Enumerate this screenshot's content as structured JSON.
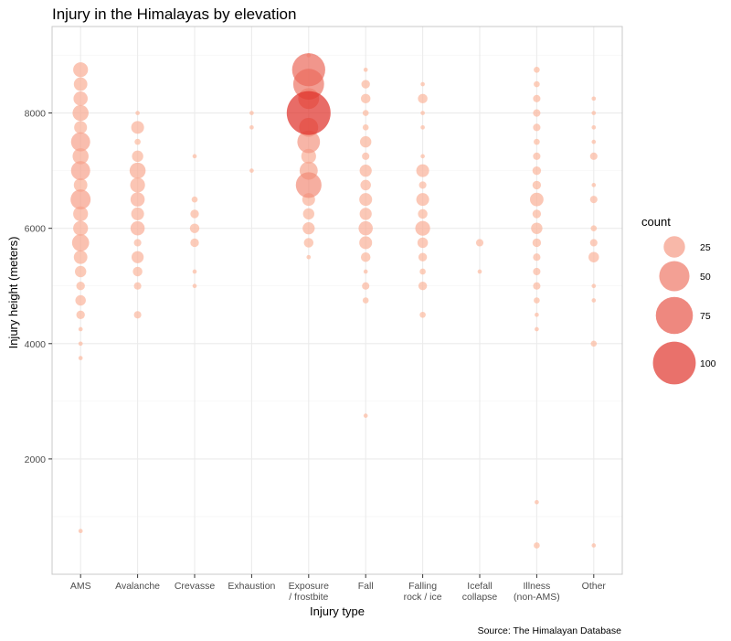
{
  "chart_data": {
    "type": "scatter",
    "title": "Injury in the Himalayas by elevation",
    "xlabel": "Injury type",
    "ylabel": "Injury height (meters)",
    "caption": "Source: The Himalayan Database",
    "categories": [
      [
        "AMS"
      ],
      [
        "Avalanche"
      ],
      [
        "Crevasse"
      ],
      [
        "Exhaustion"
      ],
      [
        "Exposure",
        "/ frostbite"
      ],
      [
        "Fall"
      ],
      [
        "Falling",
        "rock / ice"
      ],
      [
        "Icefall",
        "collapse"
      ],
      [
        "Illness",
        "(non-AMS)"
      ],
      [
        "Other"
      ]
    ],
    "ylim": [
      0,
      9500
    ],
    "yticks": [
      2000,
      4000,
      6000,
      8000
    ],
    "grid": true,
    "size_legend": {
      "title": "count",
      "placement": "right",
      "values": [
        25,
        50,
        75,
        100
      ]
    },
    "colors": {
      "low": "#fcbba1",
      "high": "#de2d26",
      "grid_major": "#ebebeb",
      "grid_minor": "#f3f3f3",
      "border": "#c8c8c8"
    },
    "points": [
      {
        "x": "AMS",
        "y": 8750,
        "count": 12
      },
      {
        "x": "AMS",
        "y": 8500,
        "count": 10
      },
      {
        "x": "AMS",
        "y": 8250,
        "count": 11
      },
      {
        "x": "AMS",
        "y": 8000,
        "count": 14
      },
      {
        "x": "AMS",
        "y": 7750,
        "count": 9
      },
      {
        "x": "AMS",
        "y": 7500,
        "count": 20
      },
      {
        "x": "AMS",
        "y": 7250,
        "count": 14
      },
      {
        "x": "AMS",
        "y": 7000,
        "count": 20
      },
      {
        "x": "AMS",
        "y": 6750,
        "count": 10
      },
      {
        "x": "AMS",
        "y": 6500,
        "count": 22
      },
      {
        "x": "AMS",
        "y": 6250,
        "count": 12
      },
      {
        "x": "AMS",
        "y": 6000,
        "count": 12
      },
      {
        "x": "AMS",
        "y": 5750,
        "count": 16
      },
      {
        "x": "AMS",
        "y": 5500,
        "count": 10
      },
      {
        "x": "AMS",
        "y": 5250,
        "count": 7
      },
      {
        "x": "AMS",
        "y": 5000,
        "count": 4
      },
      {
        "x": "AMS",
        "y": 4750,
        "count": 6
      },
      {
        "x": "AMS",
        "y": 4500,
        "count": 4
      },
      {
        "x": "AMS",
        "y": 4250,
        "count": 1
      },
      {
        "x": "AMS",
        "y": 4000,
        "count": 1
      },
      {
        "x": "AMS",
        "y": 3750,
        "count": 1
      },
      {
        "x": "AMS",
        "y": 750,
        "count": 1
      },
      {
        "x": "Avalanche",
        "y": 8000,
        "count": 1
      },
      {
        "x": "Avalanche",
        "y": 7750,
        "count": 9
      },
      {
        "x": "Avalanche",
        "y": 7500,
        "count": 2
      },
      {
        "x": "Avalanche",
        "y": 7250,
        "count": 7
      },
      {
        "x": "Avalanche",
        "y": 7000,
        "count": 14
      },
      {
        "x": "Avalanche",
        "y": 6750,
        "count": 12
      },
      {
        "x": "Avalanche",
        "y": 6500,
        "count": 11
      },
      {
        "x": "Avalanche",
        "y": 6250,
        "count": 9
      },
      {
        "x": "Avalanche",
        "y": 6000,
        "count": 11
      },
      {
        "x": "Avalanche",
        "y": 5750,
        "count": 3
      },
      {
        "x": "Avalanche",
        "y": 5500,
        "count": 8
      },
      {
        "x": "Avalanche",
        "y": 5250,
        "count": 5
      },
      {
        "x": "Avalanche",
        "y": 5000,
        "count": 3
      },
      {
        "x": "Avalanche",
        "y": 4500,
        "count": 3
      },
      {
        "x": "Crevasse",
        "y": 7250,
        "count": 1
      },
      {
        "x": "Crevasse",
        "y": 6500,
        "count": 2
      },
      {
        "x": "Crevasse",
        "y": 6250,
        "count": 4
      },
      {
        "x": "Crevasse",
        "y": 6000,
        "count": 5
      },
      {
        "x": "Crevasse",
        "y": 5750,
        "count": 4
      },
      {
        "x": "Crevasse",
        "y": 5250,
        "count": 1
      },
      {
        "x": "Crevasse",
        "y": 5000,
        "count": 1
      },
      {
        "x": "Exhaustion",
        "y": 8000,
        "count": 1
      },
      {
        "x": "Exhaustion",
        "y": 7750,
        "count": 1
      },
      {
        "x": "Exhaustion",
        "y": 7000,
        "count": 1
      },
      {
        "x": "Exposure",
        "y": 9000,
        "count": 1
      },
      {
        "x": "Exposure",
        "y": 8750,
        "count": 60
      },
      {
        "x": "Exposure",
        "y": 8500,
        "count": 52
      },
      {
        "x": "Exposure",
        "y": 8250,
        "count": 24
      },
      {
        "x": "Exposure",
        "y": 8000,
        "count": 105
      },
      {
        "x": "Exposure",
        "y": 7750,
        "count": 20
      },
      {
        "x": "Exposure",
        "y": 7500,
        "count": 28
      },
      {
        "x": "Exposure",
        "y": 7250,
        "count": 12
      },
      {
        "x": "Exposure",
        "y": 7000,
        "count": 18
      },
      {
        "x": "Exposure",
        "y": 6750,
        "count": 36
      },
      {
        "x": "Exposure",
        "y": 6500,
        "count": 9
      },
      {
        "x": "Exposure",
        "y": 6250,
        "count": 7
      },
      {
        "x": "Exposure",
        "y": 6000,
        "count": 8
      },
      {
        "x": "Exposure",
        "y": 5750,
        "count": 5
      },
      {
        "x": "Exposure",
        "y": 5500,
        "count": 1
      },
      {
        "x": "Fall",
        "y": 8750,
        "count": 1
      },
      {
        "x": "Fall",
        "y": 8500,
        "count": 4
      },
      {
        "x": "Fall",
        "y": 8250,
        "count": 5
      },
      {
        "x": "Fall",
        "y": 8000,
        "count": 2
      },
      {
        "x": "Fall",
        "y": 7750,
        "count": 2
      },
      {
        "x": "Fall",
        "y": 7500,
        "count": 7
      },
      {
        "x": "Fall",
        "y": 7250,
        "count": 3
      },
      {
        "x": "Fall",
        "y": 7000,
        "count": 8
      },
      {
        "x": "Fall",
        "y": 6750,
        "count": 6
      },
      {
        "x": "Fall",
        "y": 6500,
        "count": 9
      },
      {
        "x": "Fall",
        "y": 6250,
        "count": 8
      },
      {
        "x": "Fall",
        "y": 6000,
        "count": 11
      },
      {
        "x": "Fall",
        "y": 5750,
        "count": 9
      },
      {
        "x": "Fall",
        "y": 5500,
        "count": 5
      },
      {
        "x": "Fall",
        "y": 5250,
        "count": 1
      },
      {
        "x": "Fall",
        "y": 5000,
        "count": 3
      },
      {
        "x": "Fall",
        "y": 4750,
        "count": 2
      },
      {
        "x": "Fall",
        "y": 2750,
        "count": 1
      },
      {
        "x": "Falling rock / ice",
        "y": 8500,
        "count": 1
      },
      {
        "x": "Falling rock / ice",
        "y": 8250,
        "count": 5
      },
      {
        "x": "Falling rock / ice",
        "y": 8000,
        "count": 1
      },
      {
        "x": "Falling rock / ice",
        "y": 7750,
        "count": 1
      },
      {
        "x": "Falling rock / ice",
        "y": 7250,
        "count": 1
      },
      {
        "x": "Falling rock / ice",
        "y": 7000,
        "count": 9
      },
      {
        "x": "Falling rock / ice",
        "y": 6750,
        "count": 3
      },
      {
        "x": "Falling rock / ice",
        "y": 6500,
        "count": 9
      },
      {
        "x": "Falling rock / ice",
        "y": 6250,
        "count": 5
      },
      {
        "x": "Falling rock / ice",
        "y": 6000,
        "count": 12
      },
      {
        "x": "Falling rock / ice",
        "y": 5750,
        "count": 6
      },
      {
        "x": "Falling rock / ice",
        "y": 5500,
        "count": 4
      },
      {
        "x": "Falling rock / ice",
        "y": 5250,
        "count": 2
      },
      {
        "x": "Falling rock / ice",
        "y": 5000,
        "count": 4
      },
      {
        "x": "Falling rock / ice",
        "y": 4500,
        "count": 2
      },
      {
        "x": "Icefall collapse",
        "y": 5750,
        "count": 3
      },
      {
        "x": "Icefall collapse",
        "y": 5250,
        "count": 1
      },
      {
        "x": "Illness (non-AMS)",
        "y": 8750,
        "count": 2
      },
      {
        "x": "Illness (non-AMS)",
        "y": 8500,
        "count": 2
      },
      {
        "x": "Illness (non-AMS)",
        "y": 8250,
        "count": 3
      },
      {
        "x": "Illness (non-AMS)",
        "y": 8000,
        "count": 3
      },
      {
        "x": "Illness (non-AMS)",
        "y": 7750,
        "count": 3
      },
      {
        "x": "Illness (non-AMS)",
        "y": 7500,
        "count": 2
      },
      {
        "x": "Illness (non-AMS)",
        "y": 7250,
        "count": 3
      },
      {
        "x": "Illness (non-AMS)",
        "y": 7000,
        "count": 4
      },
      {
        "x": "Illness (non-AMS)",
        "y": 6750,
        "count": 4
      },
      {
        "x": "Illness (non-AMS)",
        "y": 6500,
        "count": 10
      },
      {
        "x": "Illness (non-AMS)",
        "y": 6250,
        "count": 4
      },
      {
        "x": "Illness (non-AMS)",
        "y": 6000,
        "count": 7
      },
      {
        "x": "Illness (non-AMS)",
        "y": 5750,
        "count": 4
      },
      {
        "x": "Illness (non-AMS)",
        "y": 5500,
        "count": 3
      },
      {
        "x": "Illness (non-AMS)",
        "y": 5250,
        "count": 3
      },
      {
        "x": "Illness (non-AMS)",
        "y": 5000,
        "count": 3
      },
      {
        "x": "Illness (non-AMS)",
        "y": 4750,
        "count": 2
      },
      {
        "x": "Illness (non-AMS)",
        "y": 4500,
        "count": 1
      },
      {
        "x": "Illness (non-AMS)",
        "y": 4250,
        "count": 1
      },
      {
        "x": "Illness (non-AMS)",
        "y": 1250,
        "count": 1
      },
      {
        "x": "Illness (non-AMS)",
        "y": 500,
        "count": 2
      },
      {
        "x": "Other",
        "y": 8250,
        "count": 1
      },
      {
        "x": "Other",
        "y": 8000,
        "count": 1
      },
      {
        "x": "Other",
        "y": 7750,
        "count": 1
      },
      {
        "x": "Other",
        "y": 7500,
        "count": 1
      },
      {
        "x": "Other",
        "y": 7250,
        "count": 3
      },
      {
        "x": "Other",
        "y": 6750,
        "count": 1
      },
      {
        "x": "Other",
        "y": 6500,
        "count": 3
      },
      {
        "x": "Other",
        "y": 6000,
        "count": 2
      },
      {
        "x": "Other",
        "y": 5750,
        "count": 3
      },
      {
        "x": "Other",
        "y": 5500,
        "count": 6
      },
      {
        "x": "Other",
        "y": 5000,
        "count": 1
      },
      {
        "x": "Other",
        "y": 4750,
        "count": 1
      },
      {
        "x": "Other",
        "y": 4000,
        "count": 2
      },
      {
        "x": "Other",
        "y": 500,
        "count": 1
      }
    ]
  }
}
